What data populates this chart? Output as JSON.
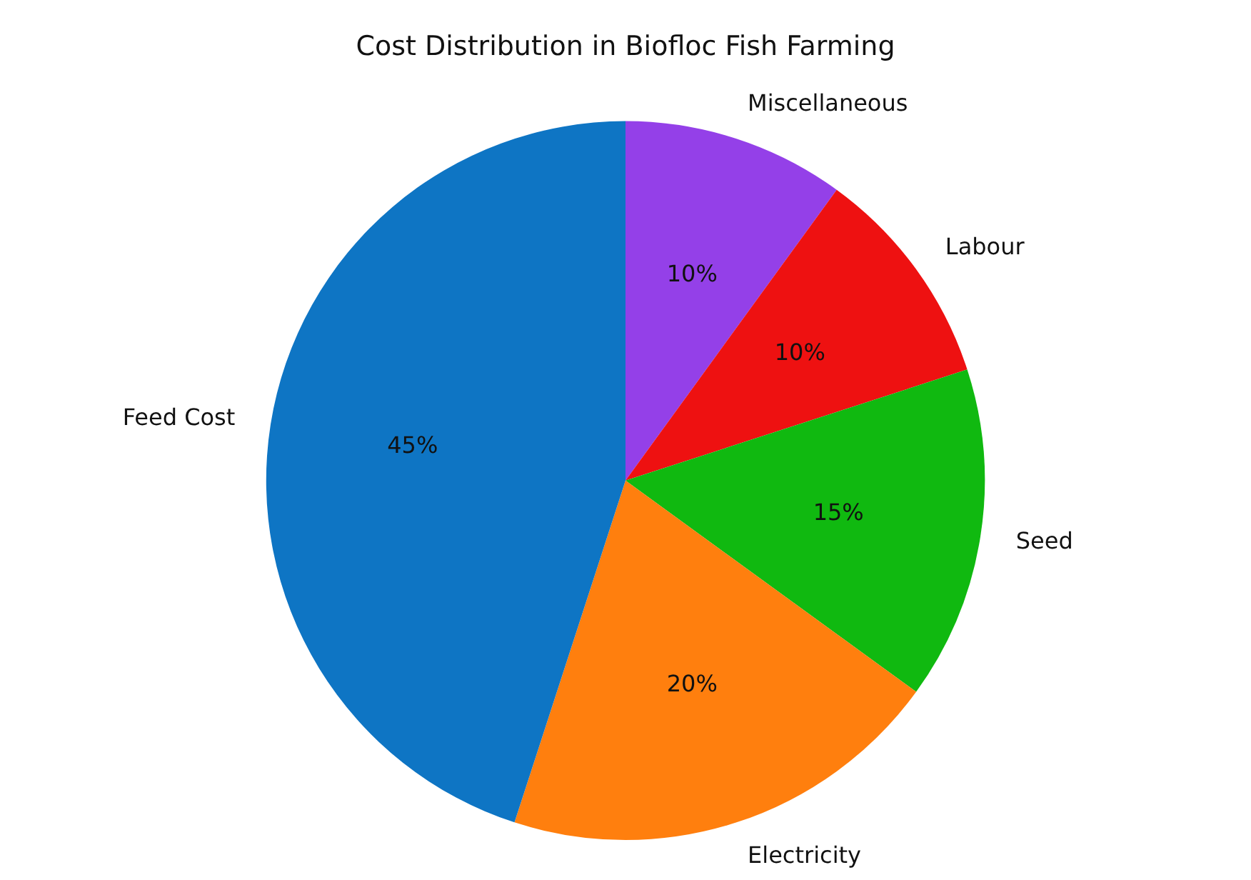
{
  "chart_data": {
    "type": "pie",
    "title": "Cost Distribution in Biofloc Fish Farming",
    "categories": [
      "Miscellaneous",
      "Labour",
      "Seed",
      "Electricity",
      "Feed Cost"
    ],
    "values": [
      10,
      10,
      15,
      20,
      45
    ],
    "colors": [
      "#9440e8",
      "#ee1111",
      "#10b910",
      "#ff7f0e",
      "#0e75c4"
    ],
    "value_labels": [
      "10%",
      "10%",
      "15%",
      "20%",
      "45%"
    ],
    "legend": false
  }
}
